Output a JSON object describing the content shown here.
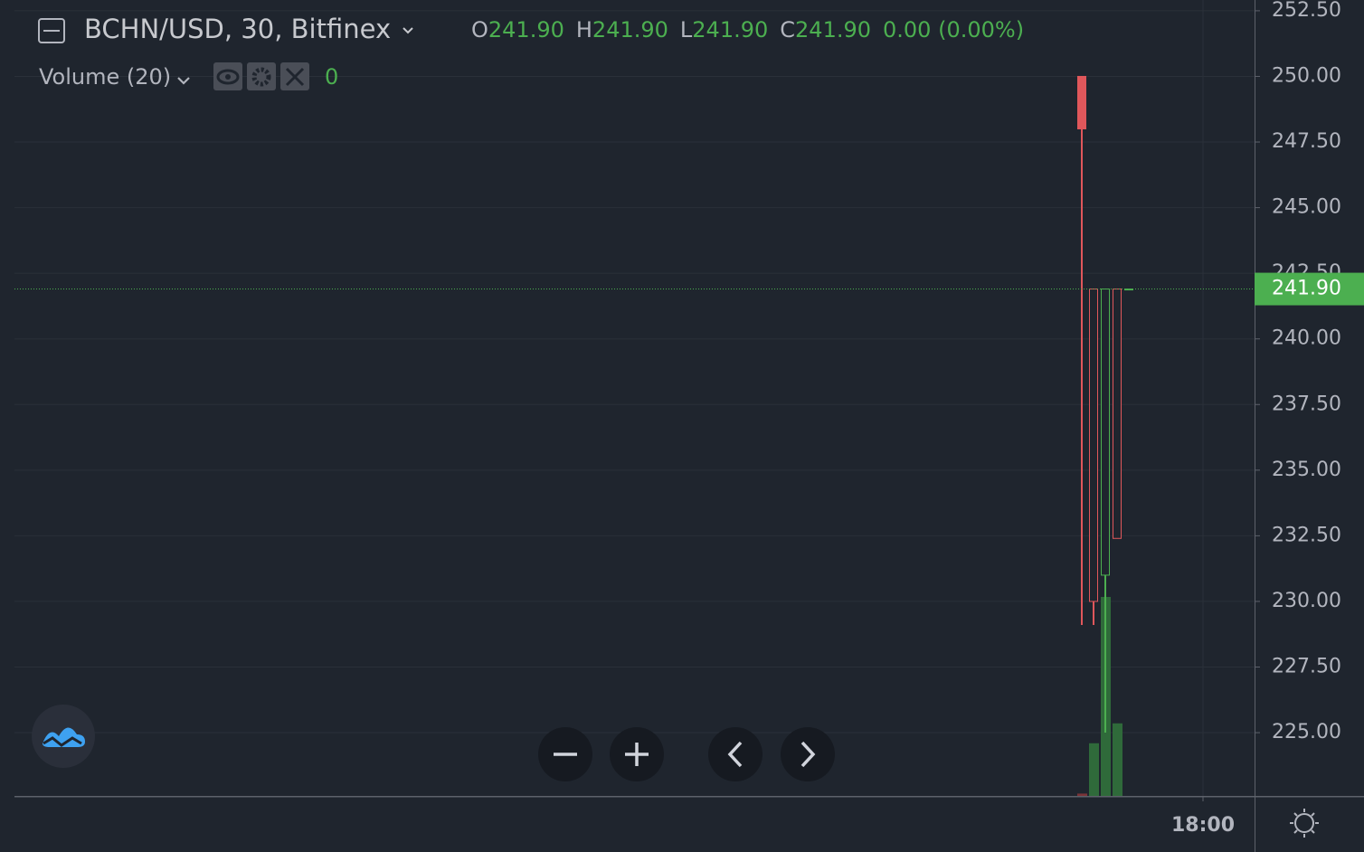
{
  "chart_data": {
    "type": "candlestick",
    "title": "BCHN/USD, 30, Bitfinex",
    "ohlc_legend": [
      {
        "key": "O",
        "value": "241.90"
      },
      {
        "key": "H",
        "value": "241.90"
      },
      {
        "key": "L",
        "value": "241.90"
      },
      {
        "key": "C",
        "value": "241.90"
      }
    ],
    "change": "0.00 (0.00%)",
    "indicator": {
      "name": "Volume (20)",
      "last_value": "0"
    },
    "categories": [
      null,
      null,
      null,
      null,
      null
    ],
    "open": [
      250.0,
      241.9,
      231.0,
      241.9,
      241.9
    ],
    "high": [
      250.0,
      241.9,
      241.9,
      241.9,
      241.9
    ],
    "low": [
      229.1,
      229.1,
      225.0,
      232.4,
      241.9
    ],
    "close": [
      248.0,
      230.0,
      241.9,
      232.4,
      241.9
    ],
    "up_color": "#4caf50",
    "down_color": "#e0575b",
    "volume": {
      "values": [
        2,
        45,
        170,
        62,
        0
      ],
      "colors": [
        "#7a3438",
        "#2f6a3a",
        "#2f6a3a",
        "#2f6a3a",
        "#2f6a3a"
      ]
    },
    "ylim": [
      222.59,
      252.91
    ],
    "yticks": [
      {
        "value": 225,
        "label": "225.00"
      },
      {
        "value": 227.5,
        "label": "227.50"
      },
      {
        "value": 230,
        "label": "230.00"
      },
      {
        "value": 232.5,
        "label": "232.50"
      },
      {
        "value": 235,
        "label": "235.00"
      },
      {
        "value": 237.5,
        "label": "237.50"
      },
      {
        "value": 240,
        "label": "240.00"
      },
      {
        "value": 242.5,
        "label": "242.50"
      },
      {
        "value": 245,
        "label": "245.00"
      },
      {
        "value": 247.5,
        "label": "247.50"
      },
      {
        "value": 250,
        "label": "250.00"
      },
      {
        "value": 252.5,
        "label": "252.50"
      }
    ],
    "xticks": [
      "18:00"
    ],
    "last_price": {
      "value": 241.9,
      "label": "241.90"
    },
    "grid": true
  }
}
